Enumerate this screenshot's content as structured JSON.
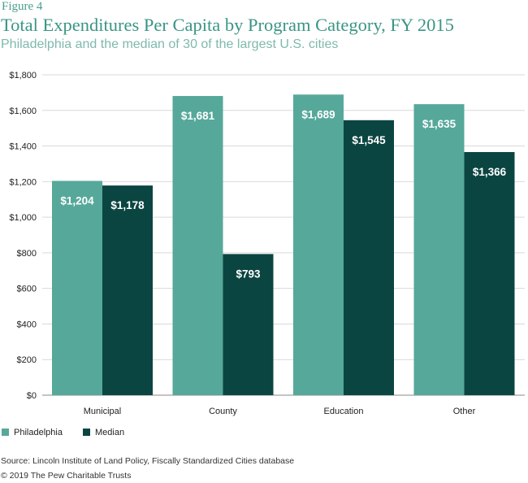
{
  "figure_label": "Figure 4",
  "footer": {
    "source": "Source: Lincoln Institute of Land Policy, Fiscally Standardized Cities database",
    "copyright": "© 2019 The Pew Charitable Trusts"
  },
  "chart_data": {
    "type": "bar",
    "title": "Total Expenditures Per Capita by Program Category, FY 2015",
    "subtitle": "Philadelphia and the median of 30 of the largest U.S. cities",
    "categories": [
      "Municipal",
      "County",
      "Education",
      "Other"
    ],
    "series": [
      {
        "name": "Philadelphia",
        "color": "#56a89a",
        "values": [
          1204,
          1681,
          1689,
          1635
        ],
        "labels": [
          "$1,204",
          "$1,681",
          "$1,689",
          "$1,635"
        ]
      },
      {
        "name": "Median",
        "color": "#0b4542",
        "values": [
          1178,
          793,
          1545,
          1366
        ],
        "labels": [
          "$1,178",
          "$793",
          "$1,545",
          "$1,366"
        ]
      }
    ],
    "ylim": [
      0,
      1800
    ],
    "yticks": [
      0,
      200,
      400,
      600,
      800,
      1000,
      1200,
      1400,
      1600,
      1800
    ],
    "ytick_labels": [
      "$0",
      "$200",
      "$400",
      "$600",
      "$800",
      "$1,000",
      "$1,200",
      "$1,400",
      "$1,600",
      "$1,800"
    ],
    "grid": true,
    "legend_position": "bottom-left"
  }
}
